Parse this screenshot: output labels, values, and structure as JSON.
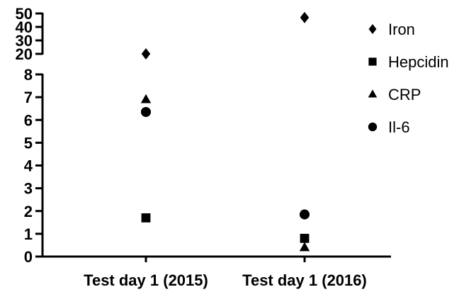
{
  "chart_data": {
    "type": "scatter",
    "categories": [
      "Test day 1 (2015)",
      "Test day 1 (2016)"
    ],
    "axis": {
      "y_lower": {
        "range": [
          0,
          8
        ],
        "ticks": [
          "0",
          "1",
          "2",
          "3",
          "4",
          "5",
          "6",
          "7",
          "8"
        ]
      },
      "y_upper": {
        "range": [
          20,
          50
        ],
        "ticks": [
          "20",
          "30",
          "40",
          "50"
        ]
      },
      "axis_break": true
    },
    "series": [
      {
        "name": "Iron",
        "marker": "diamond",
        "values": [
          20,
          47
        ]
      },
      {
        "name": "Hepcidin",
        "marker": "square",
        "values": [
          1.7,
          0.8
        ]
      },
      {
        "name": "CRP",
        "marker": "triangle",
        "values": [
          6.9,
          0.4
        ]
      },
      {
        "name": "Il-6",
        "marker": "circle",
        "values": [
          6.35,
          1.85
        ]
      }
    ],
    "legend_position": "top-right",
    "grid": false,
    "colors": {
      "marker": "#000000",
      "axis": "#000000"
    }
  }
}
